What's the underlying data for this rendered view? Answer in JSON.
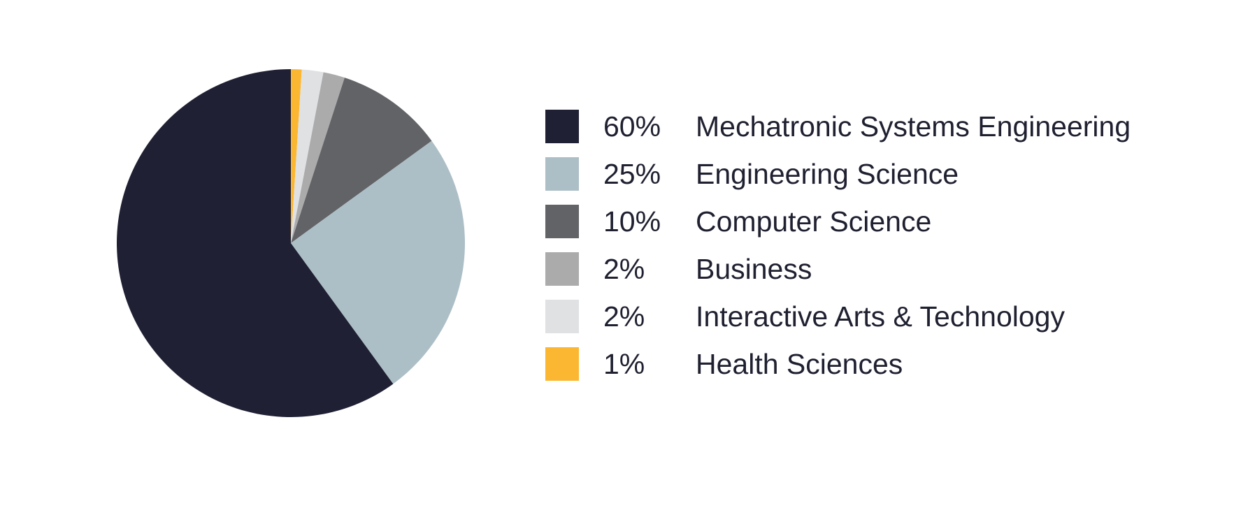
{
  "chart_data": {
    "type": "pie",
    "title": "",
    "start_angle_deg": 0,
    "direction": "clockwise",
    "legend_position": "right",
    "slices": [
      {
        "label": "Health Sciences",
        "percent_label": "1%",
        "value": 1,
        "color": "#fbb732"
      },
      {
        "label": "Interactive Arts & Technology",
        "percent_label": "2%",
        "value": 2,
        "color": "#dfe1e2"
      },
      {
        "label": "Business",
        "percent_label": "2%",
        "value": 2,
        "color": "#ababac"
      },
      {
        "label": "Computer Science",
        "percent_label": "10%",
        "value": 10,
        "color": "#626366"
      },
      {
        "label": "Engineering Science",
        "percent_label": "25%",
        "value": 25,
        "color": "#adbfc6"
      },
      {
        "label": "Mechatronic Systems Engineering",
        "percent_label": "60%",
        "value": 60,
        "color": "#1f2033"
      }
    ],
    "legend_order": [
      "Mechatronic Systems Engineering",
      "Engineering Science",
      "Computer Science",
      "Business",
      "Interactive Arts & Technology",
      "Health Sciences"
    ]
  }
}
